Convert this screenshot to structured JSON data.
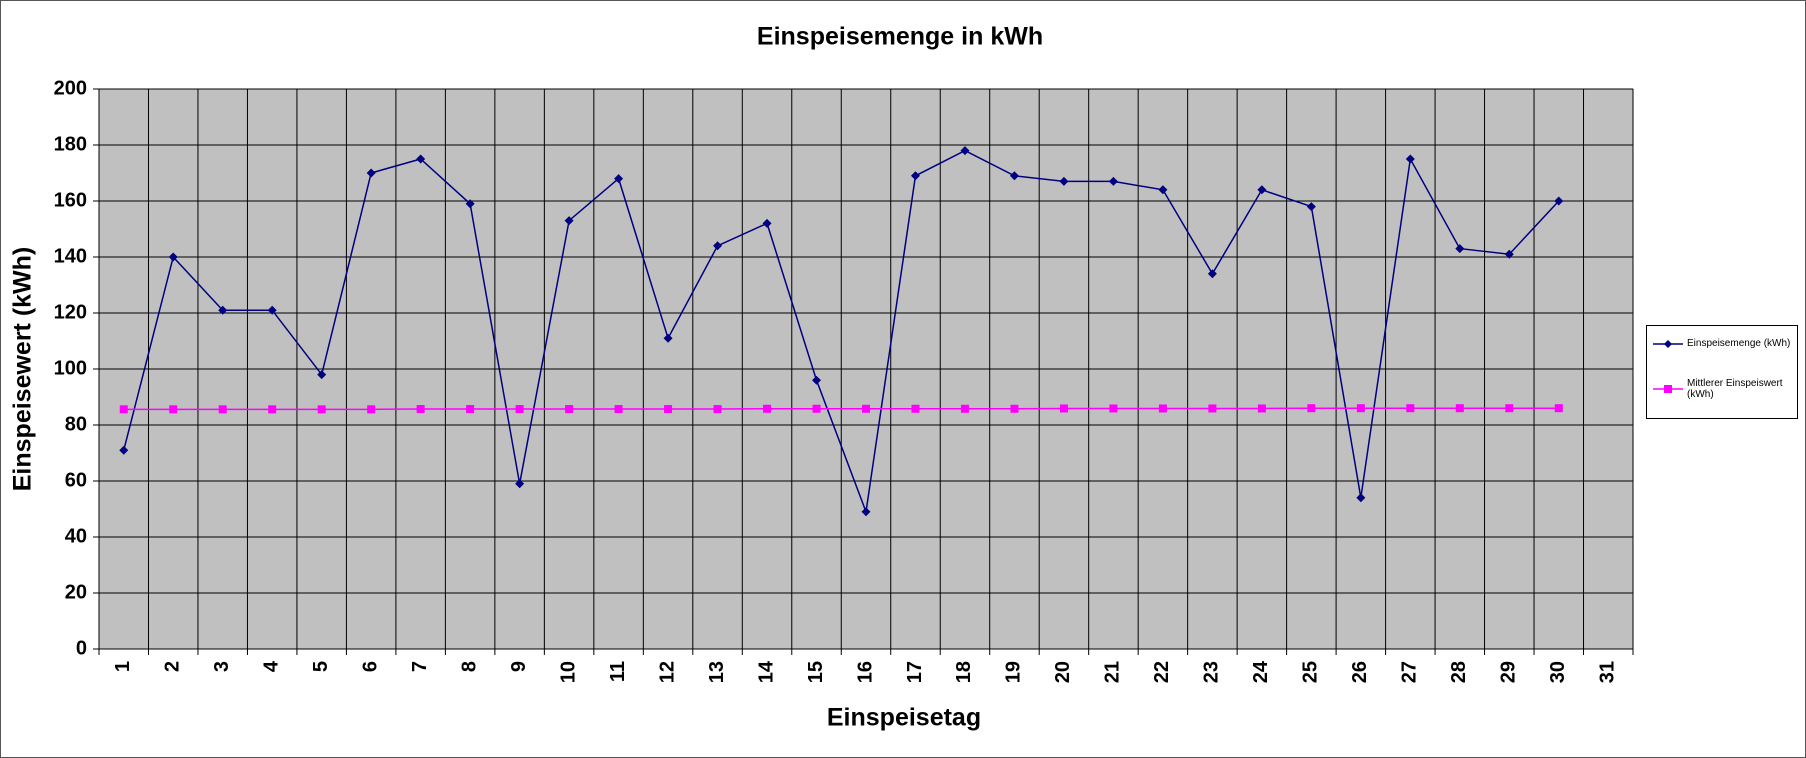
{
  "chart_data": {
    "type": "line",
    "title": "Einspeisemenge in kWh",
    "x_label": "Einspeisetag",
    "y_label": "Einspeisewert  (kWh)",
    "categories": [
      "1",
      "2",
      "3",
      "4",
      "5",
      "6",
      "7",
      "8",
      "9",
      "10",
      "11",
      "12",
      "13",
      "14",
      "15",
      "16",
      "17",
      "18",
      "19",
      "20",
      "21",
      "22",
      "23",
      "24",
      "25",
      "26",
      "27",
      "28",
      "29",
      "30",
      "31"
    ],
    "series": [
      {
        "name": "Einspeisemenge (kWh)",
        "color": "#000080",
        "marker": "diamond",
        "values": [
          71,
          140,
          121,
          121,
          98,
          170,
          175,
          159,
          59,
          153,
          168,
          111,
          144,
          152,
          96,
          49,
          169,
          178,
          169,
          167,
          167,
          164,
          134,
          164,
          158,
          54,
          175,
          143,
          141,
          160,
          null
        ]
      },
      {
        "name": "Mittlerer Einspeiswert (kWh)",
        "color": "#ff00ff",
        "marker": "square",
        "values": [
          85.6,
          85.6,
          85.6,
          85.6,
          85.6,
          85.6,
          85.7,
          85.7,
          85.7,
          85.7,
          85.7,
          85.7,
          85.7,
          85.8,
          85.8,
          85.8,
          85.8,
          85.8,
          85.8,
          85.9,
          85.9,
          85.9,
          85.9,
          85.9,
          86,
          86,
          86,
          86,
          86,
          86,
          null
        ]
      }
    ],
    "ylim": [
      0,
      200
    ],
    "yticks": [
      0,
      20,
      40,
      60,
      80,
      100,
      120,
      140,
      160,
      180,
      200
    ],
    "grid": true,
    "legend": "right"
  }
}
